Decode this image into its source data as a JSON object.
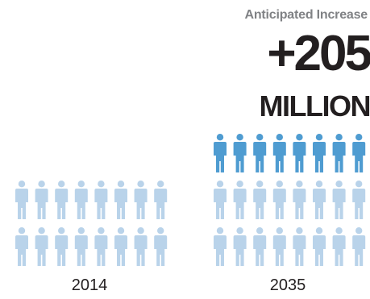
{
  "header": {
    "title": "Anticipated Increase",
    "headline_value": "+205",
    "headline_unit": "MILLION"
  },
  "colors": {
    "base_people": "#b9d3ea",
    "added_people": "#4f9cd1",
    "text_dark": "#231f20",
    "text_gray": "#808285"
  },
  "icon": "person-icon",
  "chart_data": {
    "type": "bar",
    "title": "Anticipated Increase",
    "annotation": "+205 MILLION",
    "categories": [
      "2014",
      "2035"
    ],
    "series": [
      {
        "name": "",
        "values": [
          16,
          16
        ],
        "color": "#b9d3ea"
      },
      {
        "name": "",
        "values": [
          0,
          8
        ],
        "color": "#4f9cd1"
      }
    ],
    "icons_per_row": 8,
    "xlabel": "",
    "ylabel": ""
  }
}
